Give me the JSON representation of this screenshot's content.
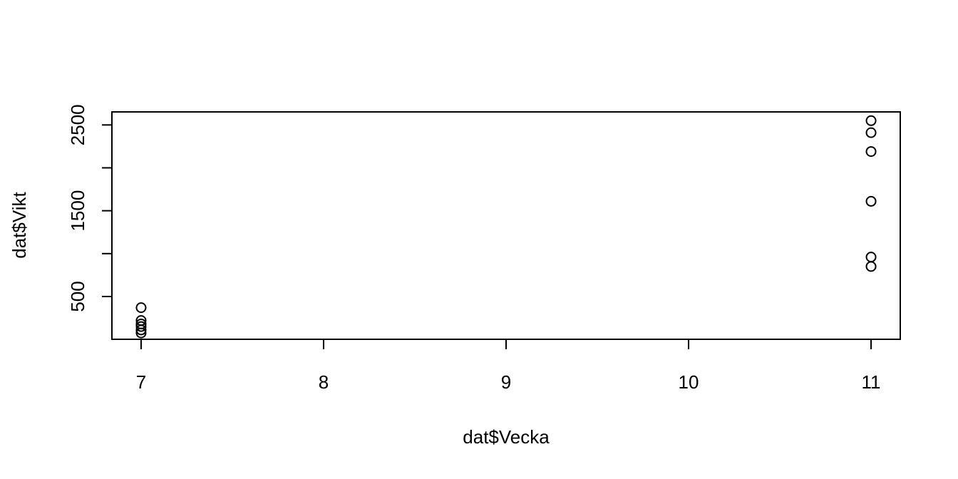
{
  "chart_data": {
    "type": "scatter",
    "title": "",
    "xlabel": "dat$Vecka",
    "ylabel": "dat$Vikt",
    "xlim": [
      6.84,
      11.16
    ],
    "ylim": [
      1.2,
      2652
    ],
    "x_ticks": [
      7,
      8,
      9,
      10,
      11
    ],
    "y_ticks": [
      500,
      1000,
      1500,
      2000,
      2500
    ],
    "y_tick_labels": [
      "500",
      "",
      "1500",
      "",
      "2500"
    ],
    "grid": false,
    "points": [
      {
        "x": 7,
        "y": 75
      },
      {
        "x": 7,
        "y": 110
      },
      {
        "x": 7,
        "y": 150
      },
      {
        "x": 7,
        "y": 180
      },
      {
        "x": 7,
        "y": 220
      },
      {
        "x": 7,
        "y": 370
      },
      {
        "x": 11,
        "y": 850
      },
      {
        "x": 11,
        "y": 960
      },
      {
        "x": 11,
        "y": 1610
      },
      {
        "x": 11,
        "y": 2190
      },
      {
        "x": 11,
        "y": 2410
      },
      {
        "x": 11,
        "y": 2550
      }
    ]
  }
}
